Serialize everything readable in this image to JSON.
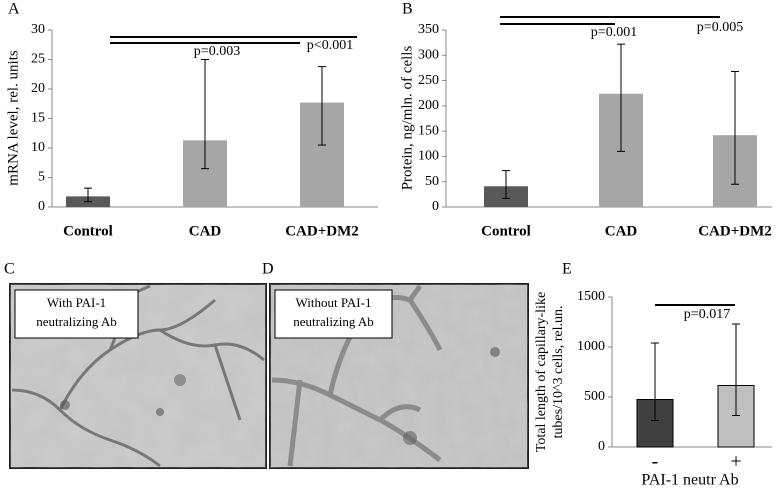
{
  "chart_data": [
    {
      "panel": "A",
      "type": "bar",
      "ylabel": "mRNA level, rel. units",
      "categories": [
        "Control",
        "CAD",
        "CAD+DM2"
      ],
      "series": [
        {
          "values": [
            1.8,
            11.3,
            17.7
          ],
          "colors": [
            "#595959",
            "#a6a6a6",
            "#a6a6a6"
          ],
          "error_lower": [
            0.9,
            4.8,
            7.2
          ],
          "error_upper": [
            1.4,
            13.7,
            6.1
          ]
        }
      ],
      "ylim": [
        0,
        30
      ],
      "yticks": [
        0,
        5,
        10,
        15,
        20,
        25,
        30
      ],
      "annotations": [
        "p=0.003",
        "p<0.001"
      ]
    },
    {
      "panel": "B",
      "type": "bar",
      "ylabel": "Protein, ng/mln. of cells",
      "categories": [
        "Control",
        "CAD",
        "CAD+DM2"
      ],
      "series": [
        {
          "values": [
            41,
            224,
            142
          ],
          "colors": [
            "#595959",
            "#a6a6a6",
            "#a6a6a6"
          ],
          "error_lower": [
            24,
            114,
            97
          ],
          "error_upper": [
            31,
            98,
            126
          ]
        }
      ],
      "ylim": [
        0,
        350
      ],
      "yticks": [
        0,
        50,
        100,
        150,
        200,
        250,
        300,
        350
      ],
      "annotations": [
        "p=0.001",
        "p=0.005"
      ]
    },
    {
      "panel": "E",
      "type": "bar",
      "ylabel": [
        "Total length of capillary-like",
        "tubes/10^3 cells, rel.un."
      ],
      "xlabel": "PAI-1 neutr Ab",
      "categories": [
        "-",
        "+"
      ],
      "series": [
        {
          "values": [
            475,
            615
          ],
          "colors": [
            "#404040",
            "#bfbfbf"
          ],
          "error_lower": [
            210,
            300
          ],
          "error_upper": [
            565,
            615
          ]
        }
      ],
      "ylim": [
        0,
        1500
      ],
      "yticks": [
        0,
        500,
        1000,
        1500
      ],
      "annotations": [
        "p=0.017"
      ]
    }
  ],
  "images": [
    {
      "panel": "C",
      "caption": [
        "With PAI-1",
        "neutralizing Ab"
      ]
    },
    {
      "panel": "D",
      "caption": [
        "Without PAI-1",
        "neutralizing Ab"
      ]
    }
  ]
}
